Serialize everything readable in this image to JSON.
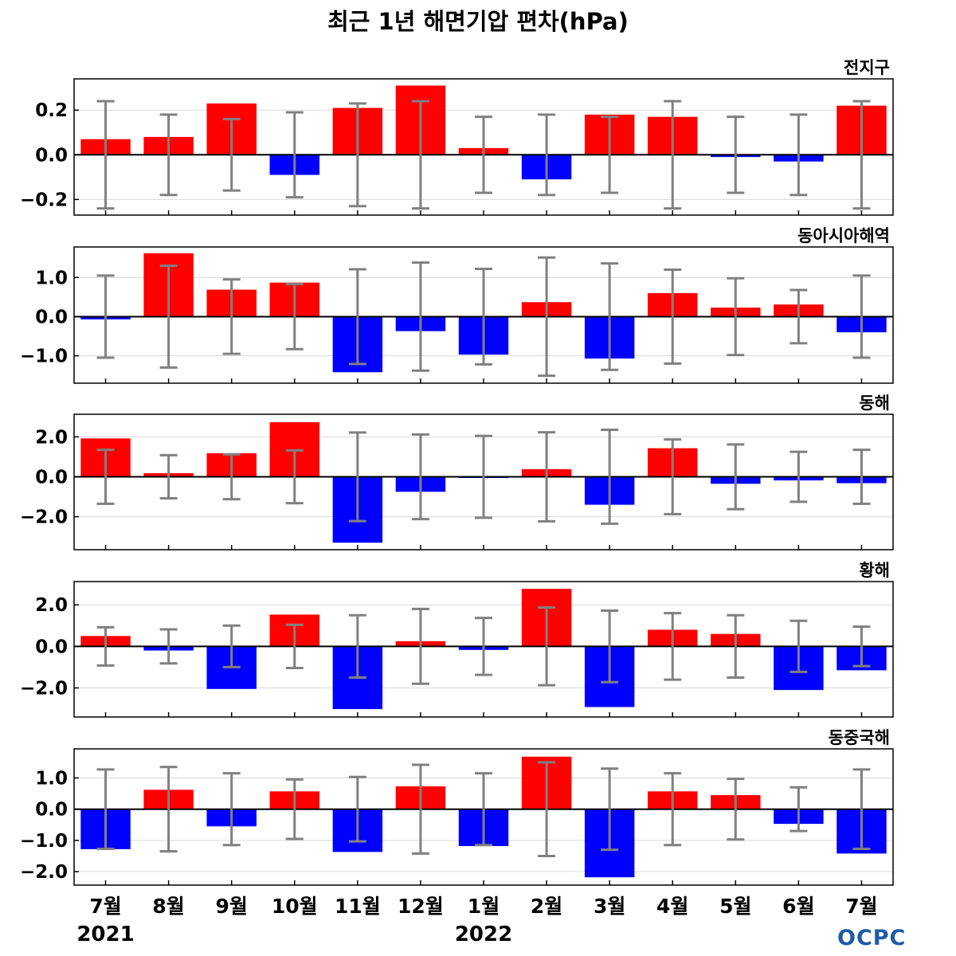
{
  "title": "최근 1년 해면기압 편차(hPa)",
  "logo": "OCPC",
  "colors": {
    "positive": "#ff0000",
    "negative": "#0000ff",
    "errorbar": "#808080",
    "zero_line": "#000000",
    "grid": "#d9d9d9"
  },
  "chart_data": [
    {
      "type": "bar",
      "title": "전지구",
      "categories": [
        "7월",
        "8월",
        "9월",
        "10월",
        "11월",
        "12월",
        "1월",
        "2월",
        "3월",
        "4월",
        "5월",
        "6월",
        "7월"
      ],
      "year_labels": [
        {
          "index": 0,
          "label": "2021"
        },
        {
          "index": 6,
          "label": "2022"
        }
      ],
      "values": [
        0.07,
        0.08,
        0.23,
        -0.09,
        0.21,
        0.31,
        0.03,
        -0.11,
        0.18,
        0.17,
        -0.01,
        -0.03,
        0.22
      ],
      "errors": [
        0.24,
        0.18,
        0.16,
        0.19,
        0.23,
        0.24,
        0.17,
        0.18,
        0.17,
        0.24,
        0.17,
        0.18,
        0.24
      ],
      "ylim": [
        -0.27,
        0.34
      ],
      "yticks": [
        0.2,
        0.0,
        -0.2
      ],
      "ytick_labels": [
        "0.2",
        "0.0",
        "−0.2"
      ],
      "grid": true
    },
    {
      "type": "bar",
      "title": "동아시아해역",
      "categories": [
        "7월",
        "8월",
        "9월",
        "10월",
        "11월",
        "12월",
        "1월",
        "2월",
        "3월",
        "4월",
        "5월",
        "6월",
        "7월"
      ],
      "values": [
        -0.07,
        1.62,
        0.69,
        0.87,
        -1.42,
        -0.37,
        -0.97,
        0.37,
        -1.07,
        0.6,
        0.23,
        0.31,
        -0.4
      ],
      "errors": [
        1.05,
        1.3,
        0.95,
        0.83,
        1.21,
        1.38,
        1.22,
        1.51,
        1.36,
        1.2,
        0.98,
        0.68,
        1.05
      ],
      "ylim": [
        -1.7,
        1.78
      ],
      "yticks": [
        1.0,
        0.0,
        -1.0
      ],
      "ytick_labels": [
        "1.0",
        "0.0",
        "−1.0"
      ],
      "grid": true
    },
    {
      "type": "bar",
      "title": "동해",
      "categories": [
        "7월",
        "8월",
        "9월",
        "10월",
        "11월",
        "12월",
        "1월",
        "2월",
        "3월",
        "4월",
        "5월",
        "6월",
        "7월"
      ],
      "values": [
        1.92,
        0.18,
        1.18,
        2.73,
        -3.3,
        -0.75,
        -0.05,
        0.38,
        -1.4,
        1.43,
        -0.35,
        -0.18,
        -0.32
      ],
      "errors": [
        1.35,
        1.08,
        1.12,
        1.32,
        2.22,
        2.12,
        2.05,
        2.23,
        2.35,
        1.87,
        1.62,
        1.25,
        1.35
      ],
      "ylim": [
        -3.65,
        3.13
      ],
      "yticks": [
        2.0,
        0.0,
        -2.0
      ],
      "ytick_labels": [
        "2.0",
        "0.0",
        "−2.0"
      ],
      "grid": true
    },
    {
      "type": "bar",
      "title": "황해",
      "categories": [
        "7월",
        "8월",
        "9월",
        "10월",
        "11월",
        "12월",
        "1월",
        "2월",
        "3월",
        "4월",
        "5월",
        "6월",
        "7월"
      ],
      "values": [
        0.5,
        -0.2,
        -2.05,
        1.53,
        -3.02,
        0.25,
        -0.17,
        2.77,
        -2.92,
        0.8,
        0.6,
        -2.1,
        -1.15
      ],
      "errors": [
        0.92,
        0.82,
        1.0,
        1.04,
        1.5,
        1.8,
        1.37,
        1.87,
        1.72,
        1.6,
        1.5,
        1.23,
        0.95
      ],
      "ylim": [
        -3.4,
        3.12
      ],
      "yticks": [
        2.0,
        0.0,
        -2.0
      ],
      "ytick_labels": [
        "2.0",
        "0.0",
        "−2.0"
      ],
      "grid": true
    },
    {
      "type": "bar",
      "title": "동중국해",
      "categories": [
        "7월",
        "8월",
        "9월",
        "10월",
        "11월",
        "12월",
        "1월",
        "2월",
        "3월",
        "4월",
        "5월",
        "6월",
        "7월"
      ],
      "values": [
        -1.28,
        0.62,
        -0.55,
        0.57,
        -1.37,
        0.73,
        -1.18,
        1.68,
        -2.18,
        0.57,
        0.45,
        -0.47,
        -1.42
      ],
      "errors": [
        1.27,
        1.35,
        1.15,
        0.95,
        1.03,
        1.42,
        1.15,
        1.5,
        1.3,
        1.15,
        0.97,
        0.7,
        1.27
      ],
      "ylim": [
        -2.43,
        1.93
      ],
      "yticks": [
        1.0,
        0.0,
        -1.0,
        -2.0
      ],
      "ytick_labels": [
        "1.0",
        "0.0",
        "−1.0",
        "−2.0"
      ],
      "grid": true
    }
  ]
}
